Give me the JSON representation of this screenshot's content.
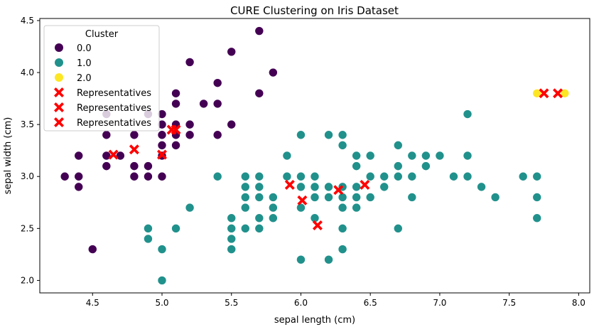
{
  "chart_data": {
    "type": "scatter",
    "title": "CURE Clustering on Iris Dataset",
    "xlabel": "sepal length (cm)",
    "ylabel": "sepal width (cm)",
    "xlim": [
      4.12,
      8.08
    ],
    "ylim": [
      1.88,
      4.52
    ],
    "x_ticks": [
      4.5,
      5.0,
      5.5,
      6.0,
      6.5,
      7.0,
      7.5,
      8.0
    ],
    "x_tick_labels": [
      "4.5",
      "5.0",
      "5.5",
      "6.0",
      "6.5",
      "7.0",
      "7.5",
      "8.0"
    ],
    "y_ticks": [
      2.0,
      2.5,
      3.0,
      3.5,
      4.0,
      4.5
    ],
    "y_tick_labels": [
      "2.0",
      "2.5",
      "3.0",
      "3.5",
      "4.0",
      "4.5"
    ],
    "grid": false,
    "legend": {
      "title": "Cluster",
      "placement": "top-left",
      "entries": [
        {
          "label": "0.0",
          "marker": "circle",
          "color": "#440154"
        },
        {
          "label": "1.0",
          "marker": "circle",
          "color": "#21918c"
        },
        {
          "label": "2.0",
          "marker": "circle",
          "color": "#fde725"
        },
        {
          "label": "Representatives",
          "marker": "x",
          "color": "#ff0000"
        },
        {
          "label": "Representatives",
          "marker": "x",
          "color": "#ff0000"
        },
        {
          "label": "Representatives",
          "marker": "x",
          "color": "#ff0000"
        }
      ]
    },
    "series": [
      {
        "name": "0.0",
        "color": "#440154",
        "points": [
          [
            5.1,
            3.5
          ],
          [
            4.9,
            3.0
          ],
          [
            4.7,
            3.2
          ],
          [
            4.6,
            3.1
          ],
          [
            5.0,
            3.6
          ],
          [
            5.4,
            3.9
          ],
          [
            4.6,
            3.4
          ],
          [
            5.0,
            3.4
          ],
          [
            4.4,
            2.9
          ],
          [
            4.9,
            3.1
          ],
          [
            5.4,
            3.7
          ],
          [
            4.8,
            3.4
          ],
          [
            4.8,
            3.0
          ],
          [
            4.3,
            3.0
          ],
          [
            5.8,
            4.0
          ],
          [
            5.7,
            4.4
          ],
          [
            5.4,
            3.9
          ],
          [
            5.1,
            3.5
          ],
          [
            5.7,
            3.8
          ],
          [
            5.1,
            3.8
          ],
          [
            5.4,
            3.4
          ],
          [
            5.1,
            3.7
          ],
          [
            4.6,
            3.6
          ],
          [
            5.1,
            3.3
          ],
          [
            4.8,
            3.4
          ],
          [
            5.0,
            3.0
          ],
          [
            5.0,
            3.4
          ],
          [
            5.2,
            3.5
          ],
          [
            5.2,
            3.4
          ],
          [
            4.7,
            3.2
          ],
          [
            4.8,
            3.1
          ],
          [
            5.4,
            3.4
          ],
          [
            5.2,
            4.1
          ],
          [
            5.5,
            4.2
          ],
          [
            4.9,
            3.1
          ],
          [
            5.0,
            3.2
          ],
          [
            5.5,
            3.5
          ],
          [
            4.9,
            3.6
          ],
          [
            4.4,
            3.0
          ],
          [
            5.1,
            3.4
          ],
          [
            5.0,
            3.5
          ],
          [
            4.5,
            2.3
          ],
          [
            4.4,
            3.2
          ],
          [
            5.0,
            3.5
          ],
          [
            5.1,
            3.8
          ],
          [
            4.8,
            3.0
          ],
          [
            5.1,
            3.8
          ],
          [
            4.6,
            3.2
          ],
          [
            5.3,
            3.7
          ],
          [
            5.0,
            3.3
          ]
        ]
      },
      {
        "name": "1.0",
        "color": "#21918c",
        "points": [
          [
            7.0,
            3.2
          ],
          [
            6.4,
            3.2
          ],
          [
            6.9,
            3.1
          ],
          [
            5.5,
            2.3
          ],
          [
            6.5,
            2.8
          ],
          [
            5.7,
            2.8
          ],
          [
            6.3,
            3.3
          ],
          [
            4.9,
            2.4
          ],
          [
            6.6,
            2.9
          ],
          [
            5.2,
            2.7
          ],
          [
            5.0,
            2.0
          ],
          [
            5.9,
            3.0
          ],
          [
            6.0,
            2.2
          ],
          [
            6.1,
            2.9
          ],
          [
            5.6,
            2.9
          ],
          [
            6.7,
            3.1
          ],
          [
            5.6,
            3.0
          ],
          [
            5.8,
            2.7
          ],
          [
            6.2,
            2.2
          ],
          [
            5.6,
            2.5
          ],
          [
            5.9,
            3.2
          ],
          [
            6.1,
            2.8
          ],
          [
            6.3,
            2.5
          ],
          [
            6.1,
            2.8
          ],
          [
            6.4,
            2.9
          ],
          [
            6.6,
            3.0
          ],
          [
            6.8,
            2.8
          ],
          [
            6.7,
            3.0
          ],
          [
            6.0,
            2.9
          ],
          [
            5.7,
            2.6
          ],
          [
            5.5,
            2.4
          ],
          [
            5.5,
            2.4
          ],
          [
            5.8,
            2.7
          ],
          [
            6.0,
            2.7
          ],
          [
            5.4,
            3.0
          ],
          [
            6.0,
            3.4
          ],
          [
            6.7,
            3.1
          ],
          [
            6.3,
            2.3
          ],
          [
            5.6,
            3.0
          ],
          [
            5.5,
            2.5
          ],
          [
            5.5,
            2.6
          ],
          [
            6.1,
            3.0
          ],
          [
            5.8,
            2.6
          ],
          [
            5.0,
            2.3
          ],
          [
            5.6,
            2.7
          ],
          [
            5.7,
            3.0
          ],
          [
            5.7,
            2.9
          ],
          [
            6.2,
            2.9
          ],
          [
            5.1,
            2.5
          ],
          [
            5.7,
            2.8
          ],
          [
            6.3,
            3.3
          ],
          [
            5.8,
            2.7
          ],
          [
            7.1,
            3.0
          ],
          [
            6.3,
            2.9
          ],
          [
            6.5,
            3.0
          ],
          [
            7.6,
            3.0
          ],
          [
            4.9,
            2.5
          ],
          [
            7.3,
            2.9
          ],
          [
            6.7,
            2.5
          ],
          [
            7.2,
            3.6
          ],
          [
            6.5,
            3.2
          ],
          [
            6.4,
            2.7
          ],
          [
            6.8,
            3.0
          ],
          [
            5.7,
            2.5
          ],
          [
            5.8,
            2.8
          ],
          [
            6.4,
            3.2
          ],
          [
            6.5,
            3.0
          ],
          [
            7.7,
            2.6
          ],
          [
            6.0,
            2.2
          ],
          [
            6.9,
            3.2
          ],
          [
            5.6,
            2.8
          ],
          [
            7.7,
            2.8
          ],
          [
            6.3,
            2.7
          ],
          [
            6.7,
            3.3
          ],
          [
            7.2,
            3.2
          ],
          [
            6.2,
            2.8
          ],
          [
            6.1,
            3.0
          ],
          [
            6.4,
            2.8
          ],
          [
            7.2,
            3.0
          ],
          [
            7.4,
            2.8
          ],
          [
            6.4,
            2.8
          ],
          [
            6.3,
            2.8
          ],
          [
            6.1,
            2.6
          ],
          [
            7.7,
            3.0
          ],
          [
            6.3,
            3.4
          ],
          [
            6.4,
            3.1
          ],
          [
            6.0,
            3.0
          ],
          [
            6.9,
            3.1
          ],
          [
            6.7,
            3.1
          ],
          [
            6.9,
            3.1
          ],
          [
            5.8,
            2.7
          ],
          [
            6.8,
            3.2
          ],
          [
            6.7,
            3.3
          ],
          [
            6.7,
            3.0
          ],
          [
            6.3,
            2.5
          ],
          [
            6.5,
            3.0
          ],
          [
            6.2,
            3.4
          ],
          [
            5.9,
            3.0
          ]
        ]
      },
      {
        "name": "2.0",
        "color": "#fde725",
        "points": [
          [
            7.7,
            3.8
          ],
          [
            7.9,
            3.8
          ]
        ]
      }
    ],
    "representatives": {
      "name": "Representatives",
      "color": "#ff0000",
      "points": [
        [
          4.65,
          3.21
        ],
        [
          4.8,
          3.26
        ],
        [
          5.0,
          3.21
        ],
        [
          5.07,
          3.45
        ],
        [
          5.1,
          3.45
        ],
        [
          5.92,
          2.92
        ],
        [
          6.01,
          2.77
        ],
        [
          6.12,
          2.53
        ],
        [
          6.27,
          2.87
        ],
        [
          6.46,
          2.92
        ],
        [
          7.75,
          3.8
        ],
        [
          7.85,
          3.8
        ]
      ]
    }
  }
}
